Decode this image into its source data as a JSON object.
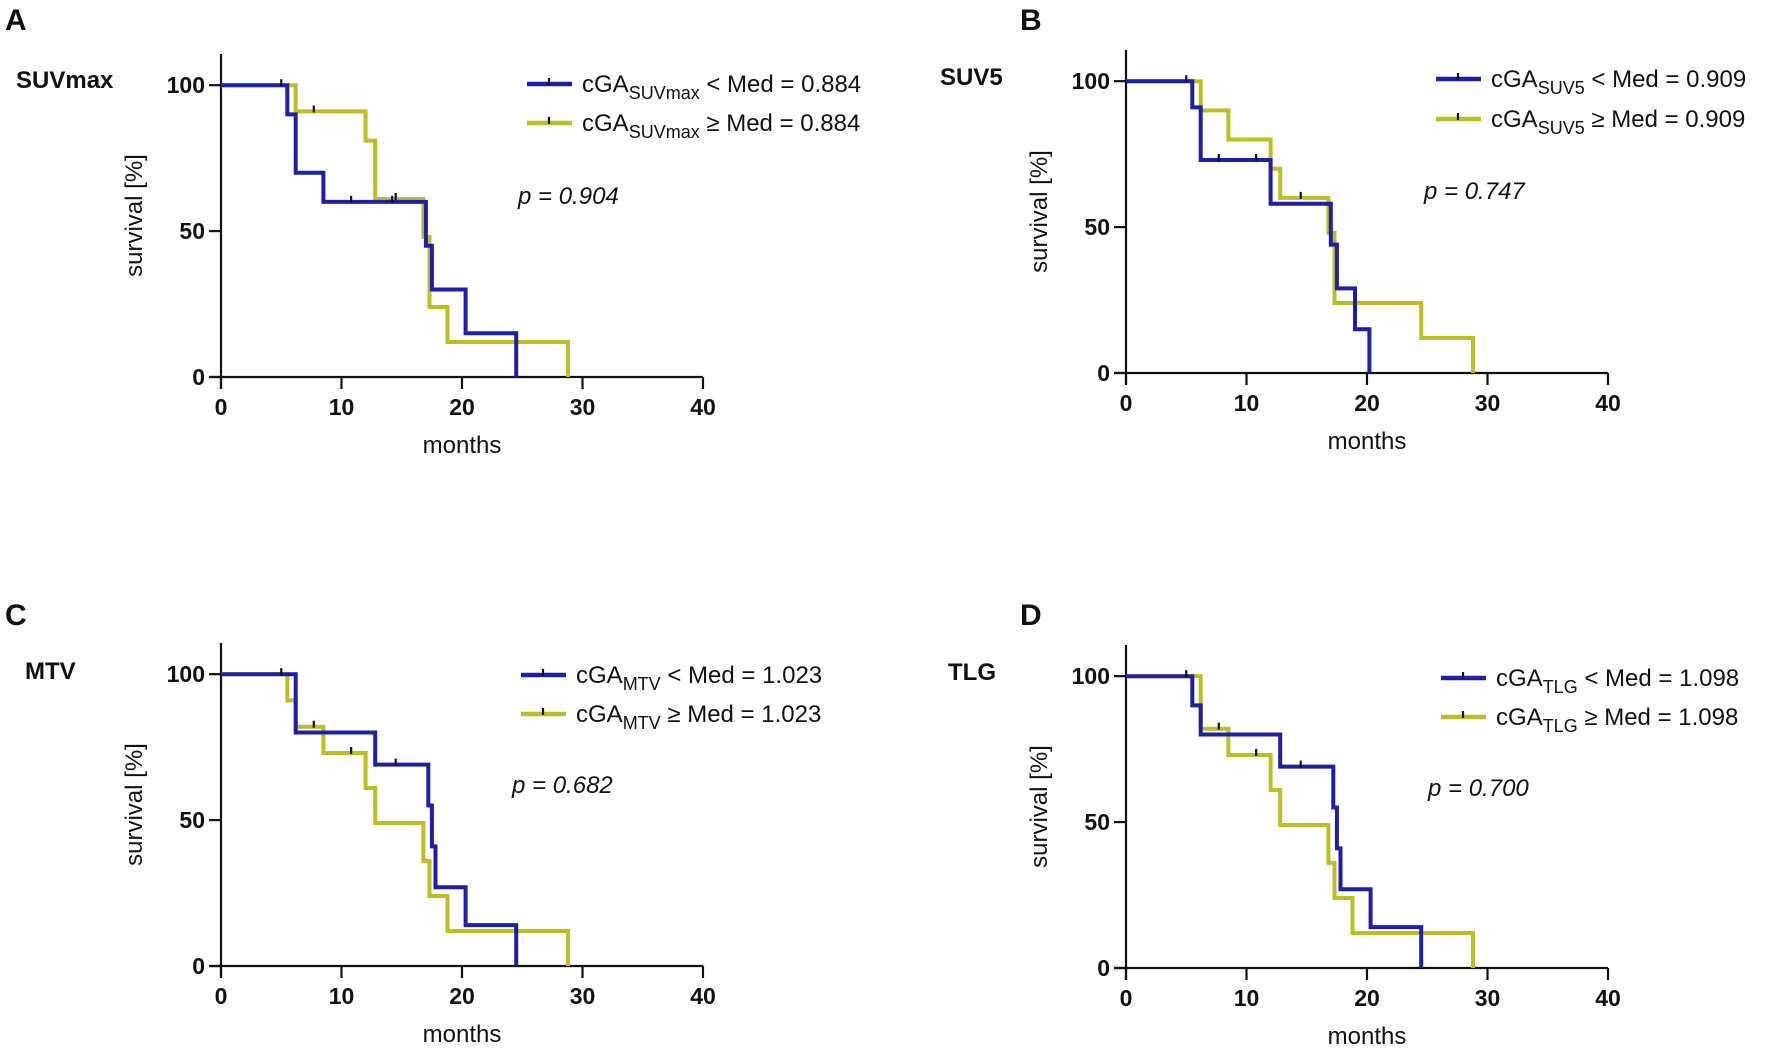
{
  "colors": {
    "group_low": "#1d1fa6",
    "group_high": "#bdbd24",
    "axis": "#111111"
  },
  "chart_data": [
    {
      "type": "line",
      "panel": "A",
      "title": "SUVmax",
      "xlabel": "months",
      "ylabel": "survival [%]",
      "xlim": [
        0,
        40
      ],
      "ylim": [
        0,
        110
      ],
      "xticks": [
        "0",
        "10",
        "20",
        "30",
        "40"
      ],
      "yticks": [
        "0",
        "50",
        "100"
      ],
      "p_value": "p = 0.904",
      "legend_position": "top-right",
      "series": [
        {
          "name": "cGA SUVmax < Med = 0.884",
          "legend": {
            "prefix": "cGA",
            "sub": "SUVmax",
            "suffix": "< Med = 0.884"
          },
          "color": "#1d1fa6",
          "steps": [
            [
              0,
              100
            ],
            [
              5.5,
              100
            ],
            [
              5.5,
              90
            ],
            [
              6.2,
              90
            ],
            [
              6.2,
              70
            ],
            [
              8.5,
              70
            ],
            [
              8.5,
              60
            ],
            [
              17.0,
              60
            ],
            [
              17.0,
              45
            ],
            [
              17.5,
              45
            ],
            [
              17.5,
              30
            ],
            [
              20.3,
              30
            ],
            [
              20.3,
              15
            ],
            [
              24.5,
              15
            ],
            [
              24.5,
              0
            ]
          ],
          "censored": [
            [
              5.0,
              100
            ],
            [
              10.8,
              60
            ],
            [
              14.2,
              60
            ]
          ]
        },
        {
          "name": "cGA SUVmax ≥ Med = 0.884",
          "legend": {
            "prefix": "cGA",
            "sub": "SUVmax",
            "suffix": "≥ Med = 0.884"
          },
          "color": "#bdbd24",
          "steps": [
            [
              0,
              100
            ],
            [
              6.2,
              100
            ],
            [
              6.2,
              91
            ],
            [
              12.0,
              91
            ],
            [
              12.0,
              81
            ],
            [
              12.8,
              81
            ],
            [
              12.8,
              61
            ],
            [
              16.8,
              61
            ],
            [
              16.8,
              48
            ],
            [
              17.3,
              48
            ],
            [
              17.3,
              24
            ],
            [
              18.8,
              24
            ],
            [
              18.8,
              12
            ],
            [
              28.8,
              12
            ],
            [
              28.8,
              0
            ]
          ],
          "censored": [
            [
              7.7,
              91
            ],
            [
              14.5,
              61
            ]
          ]
        }
      ]
    },
    {
      "type": "line",
      "panel": "B",
      "title": "SUV5",
      "xlabel": "months",
      "ylabel": "survival [%]",
      "xlim": [
        0,
        40
      ],
      "ylim": [
        0,
        110
      ],
      "xticks": [
        "0",
        "10",
        "20",
        "30",
        "40"
      ],
      "yticks": [
        "0",
        "50",
        "100"
      ],
      "p_value": "p = 0.747",
      "legend_position": "top-right",
      "series": [
        {
          "name": "cGA SUV5 < Med = 0.909",
          "legend": {
            "prefix": "cGA",
            "sub": "SUV5",
            "suffix": "< Med = 0.909"
          },
          "color": "#1d1fa6",
          "steps": [
            [
              0,
              100
            ],
            [
              5.5,
              100
            ],
            [
              5.5,
              91
            ],
            [
              6.2,
              91
            ],
            [
              6.2,
              73
            ],
            [
              12.0,
              73
            ],
            [
              12.0,
              58
            ],
            [
              17.0,
              58
            ],
            [
              17.0,
              44
            ],
            [
              17.5,
              44
            ],
            [
              17.5,
              29
            ],
            [
              19.0,
              29
            ],
            [
              19.0,
              15
            ],
            [
              20.2,
              15
            ],
            [
              20.2,
              0
            ]
          ],
          "censored": [
            [
              5.0,
              100
            ],
            [
              7.7,
              73
            ],
            [
              10.8,
              73
            ]
          ]
        },
        {
          "name": "cGA SUV5 ≥ Med = 0.909",
          "legend": {
            "prefix": "cGA",
            "sub": "SUV5",
            "suffix": "≥ Med = 0.909"
          },
          "color": "#bdbd24",
          "steps": [
            [
              0,
              100
            ],
            [
              6.2,
              100
            ],
            [
              6.2,
              90
            ],
            [
              8.5,
              90
            ],
            [
              8.5,
              80
            ],
            [
              12.0,
              80
            ],
            [
              12.0,
              70
            ],
            [
              12.8,
              70
            ],
            [
              12.8,
              60
            ],
            [
              16.8,
              60
            ],
            [
              16.8,
              48
            ],
            [
              17.3,
              48
            ],
            [
              17.3,
              24
            ],
            [
              24.5,
              24
            ],
            [
              24.5,
              12
            ],
            [
              28.8,
              12
            ],
            [
              28.8,
              0
            ]
          ],
          "censored": [
            [
              14.5,
              60
            ]
          ]
        }
      ]
    },
    {
      "type": "line",
      "panel": "C",
      "title": "MTV",
      "xlabel": "months",
      "ylabel": "survival [%]",
      "xlim": [
        0,
        40
      ],
      "ylim": [
        0,
        110
      ],
      "xticks": [
        "0",
        "10",
        "20",
        "30",
        "40"
      ],
      "yticks": [
        "0",
        "50",
        "100"
      ],
      "p_value": "p = 0.682",
      "legend_position": "top-right",
      "series": [
        {
          "name": "cGA MTV < Med = 1.023",
          "legend": {
            "prefix": "cGA",
            "sub": "MTV",
            "suffix": "< Med = 1.023"
          },
          "color": "#1d1fa6",
          "steps": [
            [
              0,
              100
            ],
            [
              6.2,
              100
            ],
            [
              6.2,
              80
            ],
            [
              12.8,
              80
            ],
            [
              12.8,
              69
            ],
            [
              17.2,
              69
            ],
            [
              17.2,
              55
            ],
            [
              17.5,
              55
            ],
            [
              17.5,
              41
            ],
            [
              17.8,
              41
            ],
            [
              17.8,
              27
            ],
            [
              20.3,
              27
            ],
            [
              20.3,
              14
            ],
            [
              24.5,
              14
            ],
            [
              24.5,
              0
            ]
          ],
          "censored": [
            [
              5.0,
              100
            ],
            [
              14.5,
              69
            ]
          ]
        },
        {
          "name": "cGA MTV ≥ Med = 1.023",
          "legend": {
            "prefix": "cGA",
            "sub": "MTV",
            "suffix": "≥ Med = 1.023"
          },
          "color": "#bdbd24",
          "steps": [
            [
              0,
              100
            ],
            [
              5.5,
              100
            ],
            [
              5.5,
              91
            ],
            [
              6.2,
              91
            ],
            [
              6.2,
              82
            ],
            [
              8.5,
              82
            ],
            [
              8.5,
              73
            ],
            [
              12.0,
              73
            ],
            [
              12.0,
              61
            ],
            [
              12.8,
              61
            ],
            [
              12.8,
              49
            ],
            [
              16.8,
              49
            ],
            [
              16.8,
              36
            ],
            [
              17.3,
              36
            ],
            [
              17.3,
              24
            ],
            [
              18.8,
              24
            ],
            [
              18.8,
              12
            ],
            [
              28.8,
              12
            ],
            [
              28.8,
              0
            ]
          ],
          "censored": [
            [
              7.7,
              82
            ],
            [
              10.8,
              73
            ]
          ]
        }
      ]
    },
    {
      "type": "line",
      "panel": "D",
      "title": "TLG",
      "xlabel": "months",
      "ylabel": "survival [%]",
      "xlim": [
        0,
        40
      ],
      "ylim": [
        0,
        110
      ],
      "xticks": [
        "0",
        "10",
        "20",
        "30",
        "40"
      ],
      "yticks": [
        "0",
        "50",
        "100"
      ],
      "p_value": "p = 0.700",
      "legend_position": "top-right",
      "series": [
        {
          "name": "cGA TLG < Med = 1.098",
          "legend": {
            "prefix": "cGA",
            "sub": "TLG",
            "suffix": "< Med = 1.098"
          },
          "color": "#1d1fa6",
          "steps": [
            [
              0,
              100
            ],
            [
              5.5,
              100
            ],
            [
              5.5,
              90
            ],
            [
              6.2,
              90
            ],
            [
              6.2,
              80
            ],
            [
              12.8,
              80
            ],
            [
              12.8,
              69
            ],
            [
              17.2,
              69
            ],
            [
              17.2,
              55
            ],
            [
              17.5,
              55
            ],
            [
              17.5,
              41
            ],
            [
              17.8,
              41
            ],
            [
              17.8,
              27
            ],
            [
              20.3,
              27
            ],
            [
              20.3,
              14
            ],
            [
              24.5,
              14
            ],
            [
              24.5,
              0
            ]
          ],
          "censored": [
            [
              5.0,
              100
            ],
            [
              14.5,
              69
            ]
          ]
        },
        {
          "name": "cGA TLG ≥ Med = 1.098",
          "legend": {
            "prefix": "cGA",
            "sub": "TLG",
            "suffix": "≥ Med = 1.098"
          },
          "color": "#bdbd24",
          "steps": [
            [
              0,
              100
            ],
            [
              6.2,
              100
            ],
            [
              6.2,
              82
            ],
            [
              8.5,
              82
            ],
            [
              8.5,
              73
            ],
            [
              12.0,
              73
            ],
            [
              12.0,
              61
            ],
            [
              12.8,
              61
            ],
            [
              12.8,
              49
            ],
            [
              16.8,
              49
            ],
            [
              16.8,
              36
            ],
            [
              17.3,
              36
            ],
            [
              17.3,
              24
            ],
            [
              18.8,
              24
            ],
            [
              18.8,
              12
            ],
            [
              28.8,
              12
            ],
            [
              28.8,
              0
            ]
          ],
          "censored": [
            [
              7.7,
              82
            ],
            [
              10.8,
              73
            ]
          ]
        }
      ]
    }
  ]
}
